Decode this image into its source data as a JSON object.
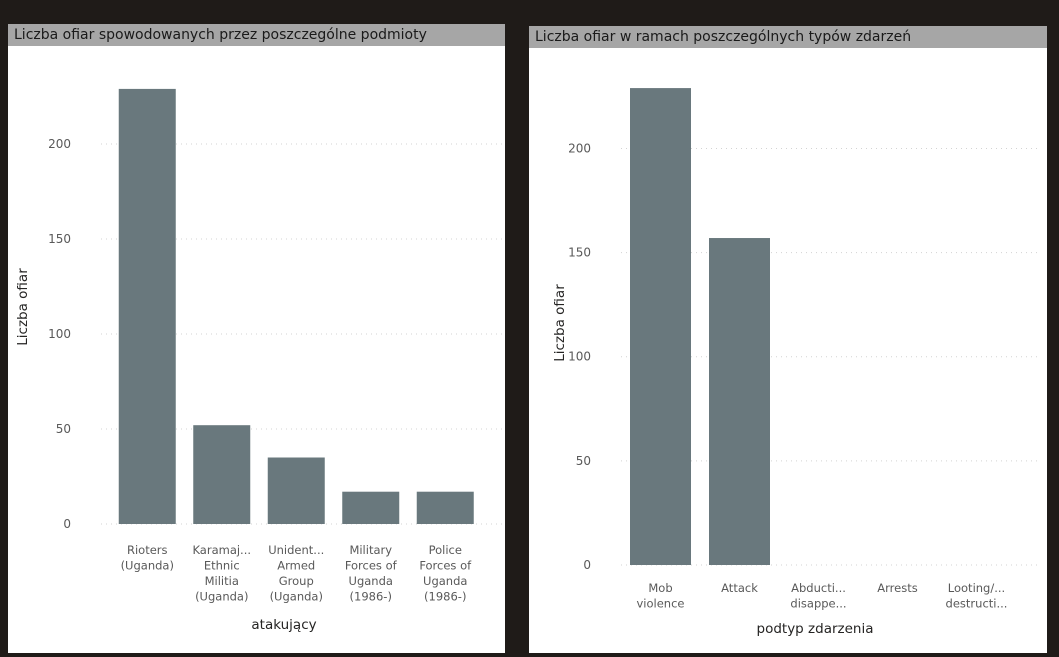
{
  "chart_data": [
    {
      "type": "bar",
      "title": "Liczba ofiar spowodowanych przez poszczególne podmioty",
      "xlabel": "atakujący",
      "ylabel": "Liczba ofiar",
      "ylim": [
        0,
        230
      ],
      "yticks": [
        0,
        50,
        100,
        150,
        200
      ],
      "grid": true,
      "bar_color": "#69787d",
      "categories": [
        [
          "Rioters",
          "(Uganda)"
        ],
        [
          "Karamaj...",
          "Ethnic",
          "Militia",
          "(Uganda)"
        ],
        [
          "Unident...",
          "Armed",
          "Group",
          "(Uganda)"
        ],
        [
          "Military",
          "Forces of",
          "Uganda",
          "(1986-)"
        ],
        [
          "Police",
          "Forces of",
          "Uganda",
          "(1986-)"
        ]
      ],
      "values": [
        229,
        52,
        35,
        17,
        17
      ]
    },
    {
      "type": "bar",
      "title": "Liczba ofiar w ramach poszczególnych typów zdarzeń",
      "xlabel": "podtyp zdarzenia",
      "ylabel": "Liczba ofiar",
      "ylim": [
        0,
        230
      ],
      "yticks": [
        0,
        50,
        100,
        150,
        200
      ],
      "grid": true,
      "bar_color": "#69787d",
      "categories": [
        [
          "Mob",
          "violence"
        ],
        [
          "Attack"
        ],
        [
          "Abducti...",
          "disappe..."
        ],
        [
          "Arrests"
        ],
        [
          "Looting/...",
          "destructi..."
        ]
      ],
      "values": [
        229,
        157,
        0,
        0,
        0
      ]
    }
  ]
}
